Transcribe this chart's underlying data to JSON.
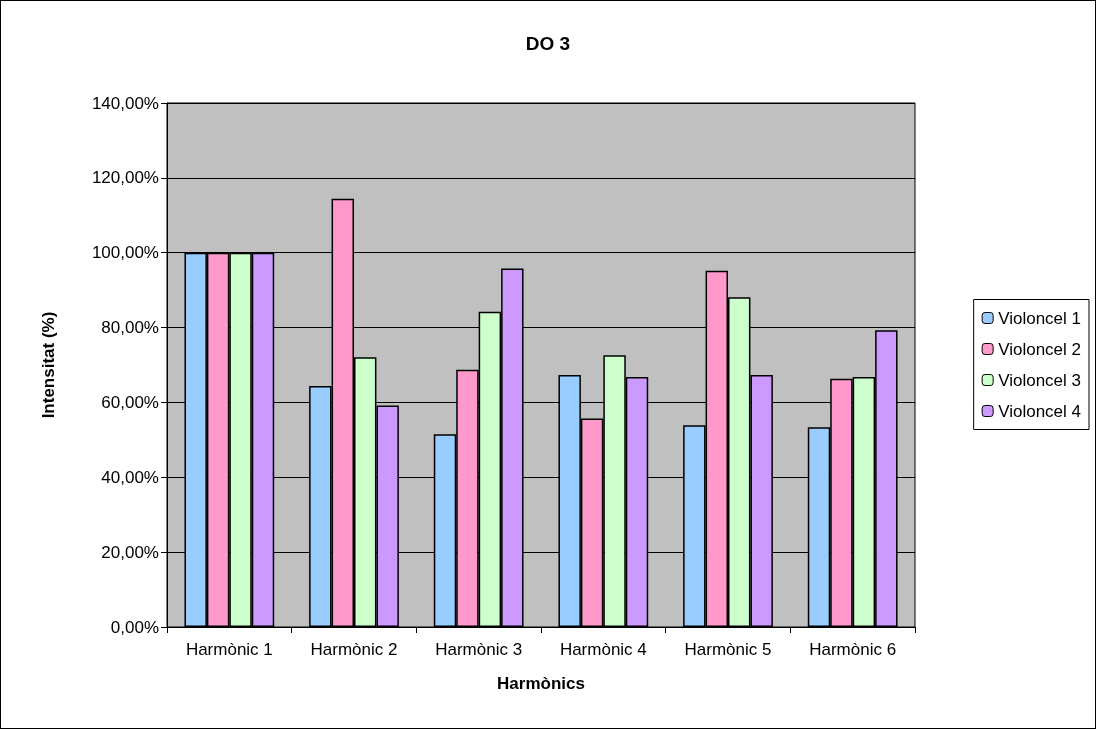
{
  "chart_data": {
    "type": "bar",
    "title": "DO 3",
    "xlabel": "Harmònics",
    "ylabel": "Intensitat (%)",
    "categories": [
      "Harmònic 1",
      "Harmònic 2",
      "Harmònic 3",
      "Harmònic 4",
      "Harmònic 5",
      "Harmònic 6"
    ],
    "series": [
      {
        "name": "Violoncel 1",
        "color": "#99ccff",
        "values": [
          100,
          64.4,
          51.5,
          67.3,
          53.9,
          53.4
        ]
      },
      {
        "name": "Violoncel 2",
        "color": "#ff99cc",
        "values": [
          100,
          114.4,
          68.7,
          55.7,
          95.2,
          66.3
        ]
      },
      {
        "name": "Violoncel 3",
        "color": "#ccffcc",
        "values": [
          100,
          72.1,
          84.2,
          72.6,
          88.1,
          66.8
        ]
      },
      {
        "name": "Violoncel 4",
        "color": "#cc99ff",
        "values": [
          100,
          59.2,
          95.8,
          66.8,
          67.3,
          79.3
        ]
      }
    ],
    "ylim": [
      0,
      140
    ],
    "yticks": [
      {
        "value": 0,
        "label": "0,00%"
      },
      {
        "value": 20,
        "label": "20,00%"
      },
      {
        "value": 40,
        "label": "40,00%"
      },
      {
        "value": 60,
        "label": "60,00%"
      },
      {
        "value": 80,
        "label": "80,00%"
      },
      {
        "value": 100,
        "label": "100,00%"
      },
      {
        "value": 120,
        "label": "120,00%"
      },
      {
        "value": 140,
        "label": "140,00%"
      }
    ],
    "grid": "y",
    "legend": "right"
  }
}
